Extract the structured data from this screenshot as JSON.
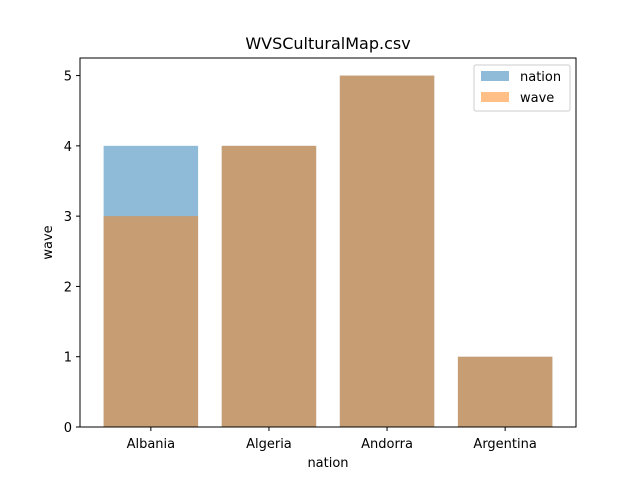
{
  "chart_data": {
    "type": "bar",
    "title": "WVSCulturalMap.csv",
    "xlabel": "nation",
    "ylabel": "wave",
    "categories": [
      "Albania",
      "Algeria",
      "Andorra",
      "Argentina"
    ],
    "series": [
      {
        "name": "nation",
        "values": [
          4,
          4,
          5,
          1
        ],
        "color": "#1f77b4",
        "opacity": 0.5
      },
      {
        "name": "wave",
        "values": [
          3,
          4,
          5,
          1
        ],
        "color": "#ff7f0e",
        "opacity": 0.5
      }
    ],
    "ylim": [
      0,
      5.25
    ],
    "yticks": [
      0,
      1,
      2,
      3,
      4,
      5
    ],
    "grid": false,
    "legend_position": "top-right"
  }
}
